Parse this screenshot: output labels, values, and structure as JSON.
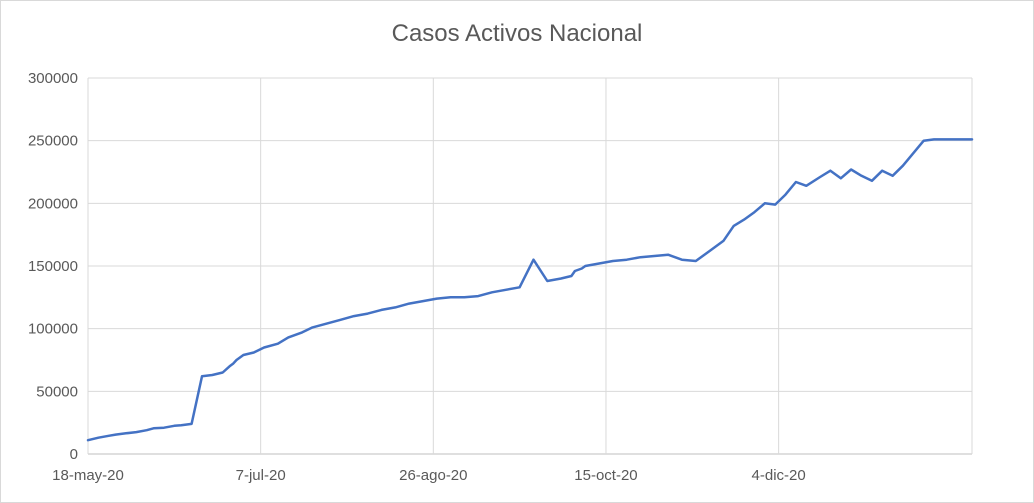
{
  "chart_data": {
    "type": "line",
    "title": "Casos Activos Nacional",
    "xlabel": "",
    "ylabel": "",
    "x_range": [
      "2020-05-18",
      "2021-01-29"
    ],
    "ylim": [
      0,
      300000
    ],
    "y_ticks": [
      0,
      50000,
      100000,
      150000,
      200000,
      250000,
      300000
    ],
    "y_tick_labels": [
      "0",
      "50000",
      "100000",
      "150000",
      "200000",
      "250000",
      "300000"
    ],
    "x_ticks": [
      "2020-05-18",
      "2020-07-07",
      "2020-08-26",
      "2020-10-15",
      "2020-12-04"
    ],
    "x_tick_labels": [
      "18-may-20",
      "7-jul-20",
      "26-ago-20",
      "15-oct-20",
      "4-dic-20"
    ],
    "grid": true,
    "legend": "none",
    "line_color": "#4472c4",
    "series": [
      {
        "x": [
          "2020-05-18",
          "2020-05-21",
          "2020-05-24",
          "2020-05-26",
          "2020-05-29",
          "2020-06-01",
          "2020-06-04",
          "2020-06-06",
          "2020-06-09",
          "2020-06-12",
          "2020-06-14",
          "2020-06-17",
          "2020-06-20",
          "2020-06-23",
          "2020-06-26",
          "2020-06-28",
          "2020-06-29",
          "2020-06-30",
          "2020-07-02",
          "2020-07-05",
          "2020-07-08",
          "2020-07-12",
          "2020-07-15",
          "2020-07-19",
          "2020-07-22",
          "2020-07-26",
          "2020-07-30",
          "2020-08-03",
          "2020-08-07",
          "2020-08-11",
          "2020-08-15",
          "2020-08-19",
          "2020-08-23",
          "2020-08-27",
          "2020-08-31",
          "2020-09-04",
          "2020-09-08",
          "2020-09-12",
          "2020-09-16",
          "2020-09-20",
          "2020-09-24",
          "2020-09-28",
          "2020-10-02",
          "2020-10-05",
          "2020-10-06",
          "2020-10-08",
          "2020-10-09",
          "2020-10-13",
          "2020-10-17",
          "2020-10-21",
          "2020-10-25",
          "2020-10-29",
          "2020-11-02",
          "2020-11-06",
          "2020-11-10",
          "2020-11-14",
          "2020-11-18",
          "2020-11-21",
          "2020-11-24",
          "2020-11-27",
          "2020-11-30",
          "2020-12-03",
          "2020-12-06",
          "2020-12-09",
          "2020-12-12",
          "2020-12-16",
          "2020-12-19",
          "2020-12-22",
          "2020-12-25",
          "2020-12-28",
          "2020-12-31",
          "2021-01-03",
          "2021-01-06",
          "2021-01-09",
          "2021-01-12",
          "2021-01-15",
          "2021-01-18",
          "2021-01-21",
          "2021-01-24",
          "2021-01-27",
          "2021-01-29"
        ],
        "values": [
          11000,
          13000,
          14500,
          15500,
          16500,
          17500,
          19000,
          20500,
          21000,
          22500,
          23000,
          24000,
          62000,
          63000,
          65000,
          70000,
          72000,
          75000,
          79000,
          81000,
          85000,
          88000,
          93000,
          97000,
          101000,
          104000,
          107000,
          110000,
          112000,
          115000,
          117000,
          120000,
          122000,
          124000,
          125000,
          125000,
          126000,
          129000,
          131000,
          133000,
          155000,
          138000,
          140000,
          142000,
          146000,
          148000,
          150000,
          152000,
          154000,
          155000,
          157000,
          158000,
          159000,
          155000,
          154000,
          162000,
          170000,
          182000,
          187000,
          193000,
          200000,
          199000,
          207000,
          217000,
          214000,
          221000,
          226000,
          220000,
          227000,
          222000,
          218000,
          226000,
          222000,
          230000,
          240000,
          250000,
          251000,
          251000,
          251000,
          251000,
          251000
        ]
      }
    ]
  }
}
